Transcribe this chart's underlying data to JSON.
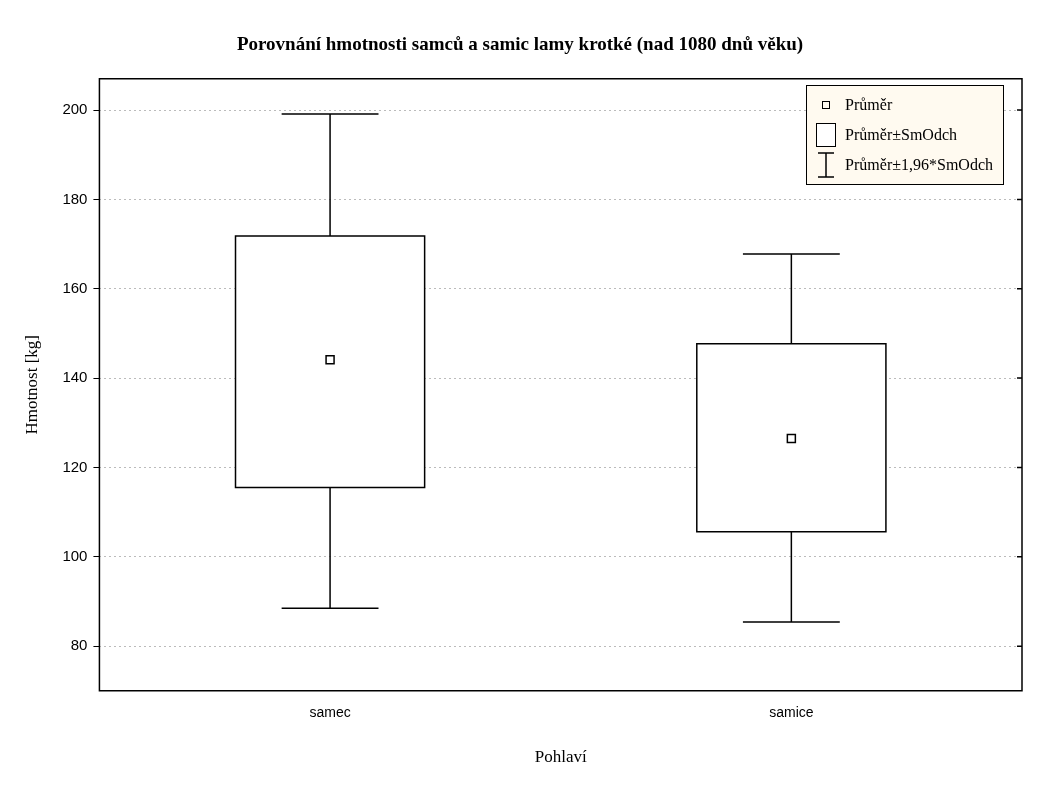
{
  "chart_data": {
    "type": "box",
    "title": "Porovnání hmotnosti samců a samic lamy krotké (nad 1080 dnů věku)",
    "xlabel": "Pohlaví",
    "ylabel": "Hmotnost [kg]",
    "categories": [
      "samec",
      "samice"
    ],
    "boxes": [
      {
        "low": 88.5,
        "q1": 115.5,
        "q3": 171.8,
        "high": 199.1,
        "mean": 144.1
      },
      {
        "low": 85.4,
        "q1": 105.6,
        "q3": 147.7,
        "high": 167.8,
        "mean": 126.5
      }
    ],
    "ylim": [
      70,
      207
    ],
    "yticks": [
      80,
      100,
      120,
      140,
      160,
      180,
      200
    ],
    "grid": "y",
    "annotations": [
      "Průměr",
      "Průměr±SmOdch",
      "Průměr±1,96*SmOdch"
    ]
  }
}
